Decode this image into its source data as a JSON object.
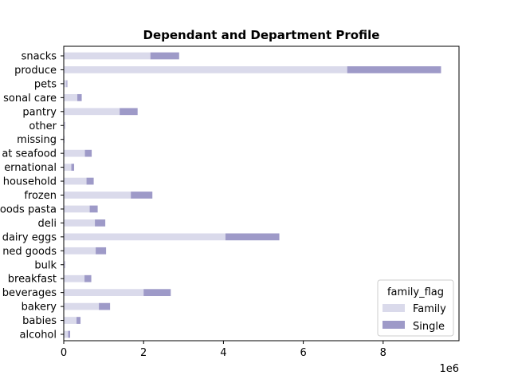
{
  "chart_data": {
    "type": "bar",
    "orientation": "horizontal",
    "stacked": true,
    "title": "Dependant and Department Profile",
    "xlabel": "",
    "ylabel": "",
    "x_offset_label": "1e6",
    "xlim": [
      0,
      9.9
    ],
    "x_ticks": [
      0,
      2,
      4,
      6,
      8
    ],
    "grid": false,
    "categories": [
      "alcohol",
      "babies",
      "bakery",
      "beverages",
      "breakfast",
      "bulk",
      "canned goods",
      "dairy eggs",
      "deli",
      "dry goods pasta",
      "frozen",
      "household",
      "international",
      "meat seafood",
      "missing",
      "other",
      "pantry",
      "personal care",
      "pets",
      "produce",
      "snacks"
    ],
    "category_labels_visible": [
      "alcohol",
      "babies",
      "bakery",
      "beverages",
      "breakfast",
      "bulk",
      "ned goods",
      "dairy eggs",
      "deli",
      "oods pasta",
      "frozen",
      "household",
      "ernational",
      "at seafood",
      "missing",
      "other",
      "pantry",
      "sonal care",
      "pets",
      "produce",
      "snacks"
    ],
    "series": [
      {
        "name": "Family",
        "color": "#dadaeb",
        "values": [
          0.11,
          0.32,
          0.88,
          2.0,
          0.52,
          0.025,
          0.8,
          4.05,
          0.78,
          0.65,
          1.68,
          0.57,
          0.19,
          0.53,
          0.015,
          0.025,
          1.4,
          0.34,
          0.07,
          7.1,
          2.17
        ]
      },
      {
        "name": "Single",
        "color": "#9e9ac8",
        "values": [
          0.05,
          0.1,
          0.28,
          0.68,
          0.17,
          0.01,
          0.26,
          1.35,
          0.26,
          0.2,
          0.54,
          0.18,
          0.07,
          0.17,
          0.005,
          0.01,
          0.45,
          0.11,
          0.02,
          2.35,
          0.72
        ]
      }
    ],
    "legend": {
      "title": "family_flag",
      "placement": "lower-right",
      "entries": [
        "Family",
        "Single"
      ]
    }
  }
}
